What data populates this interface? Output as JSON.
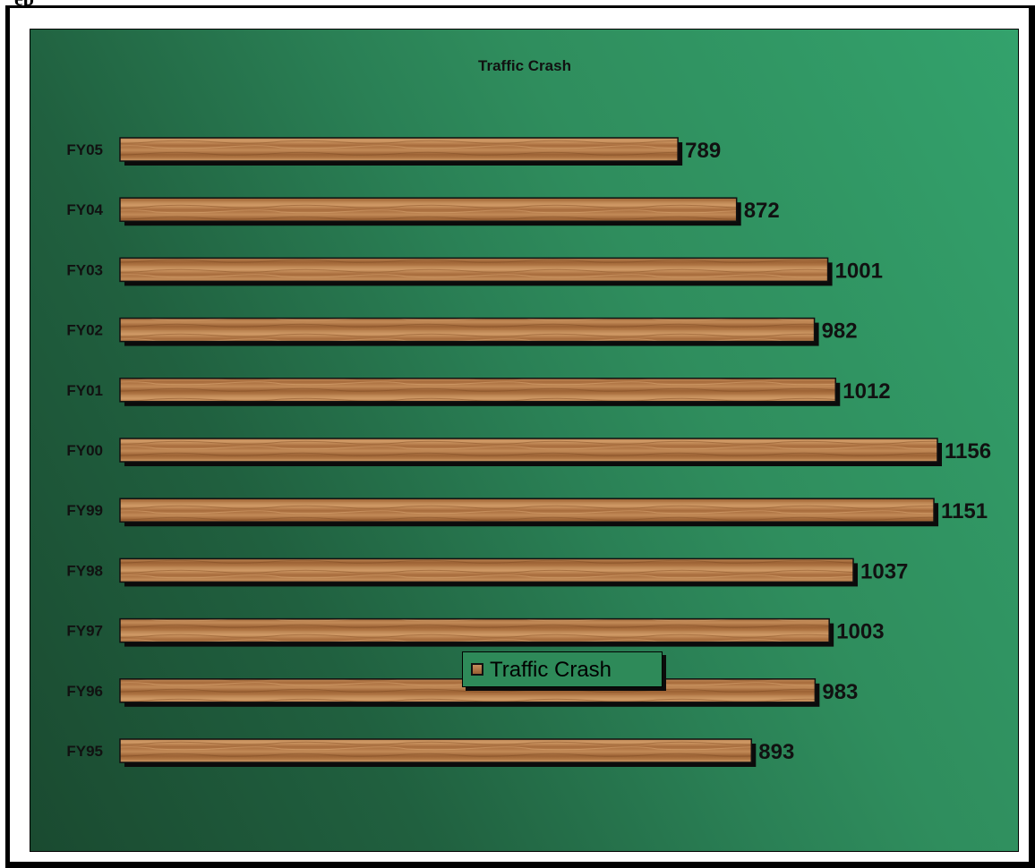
{
  "chart_data": {
    "type": "bar",
    "orientation": "horizontal",
    "title": "Traffic Crash",
    "categories": [
      "FY05",
      "FY04",
      "FY03",
      "FY02",
      "FY01",
      "FY00",
      "FY99",
      "FY98",
      "FY97",
      "FY96",
      "FY95"
    ],
    "series": [
      {
        "name": "Traffic Crash",
        "values": [
          789,
          872,
          1001,
          982,
          1012,
          1156,
          1151,
          1037,
          1003,
          983,
          893
        ]
      }
    ],
    "data_labels": [
      "789",
      "872",
      "1001",
      "982",
      "1012",
      "1156",
      "1151",
      "1037",
      "1003",
      "983",
      "893"
    ],
    "xlim": [
      0,
      1156
    ],
    "grid": false,
    "legend": "bottom-center",
    "bar_fill": "wood texture",
    "colors": {
      "background_dark": "#1a4a30",
      "background_light": "#33a26c",
      "bar_wood_light": "#c68d5e",
      "bar_wood_dark": "#9a6032",
      "bar_shadow": "#0b0b0b"
    }
  }
}
